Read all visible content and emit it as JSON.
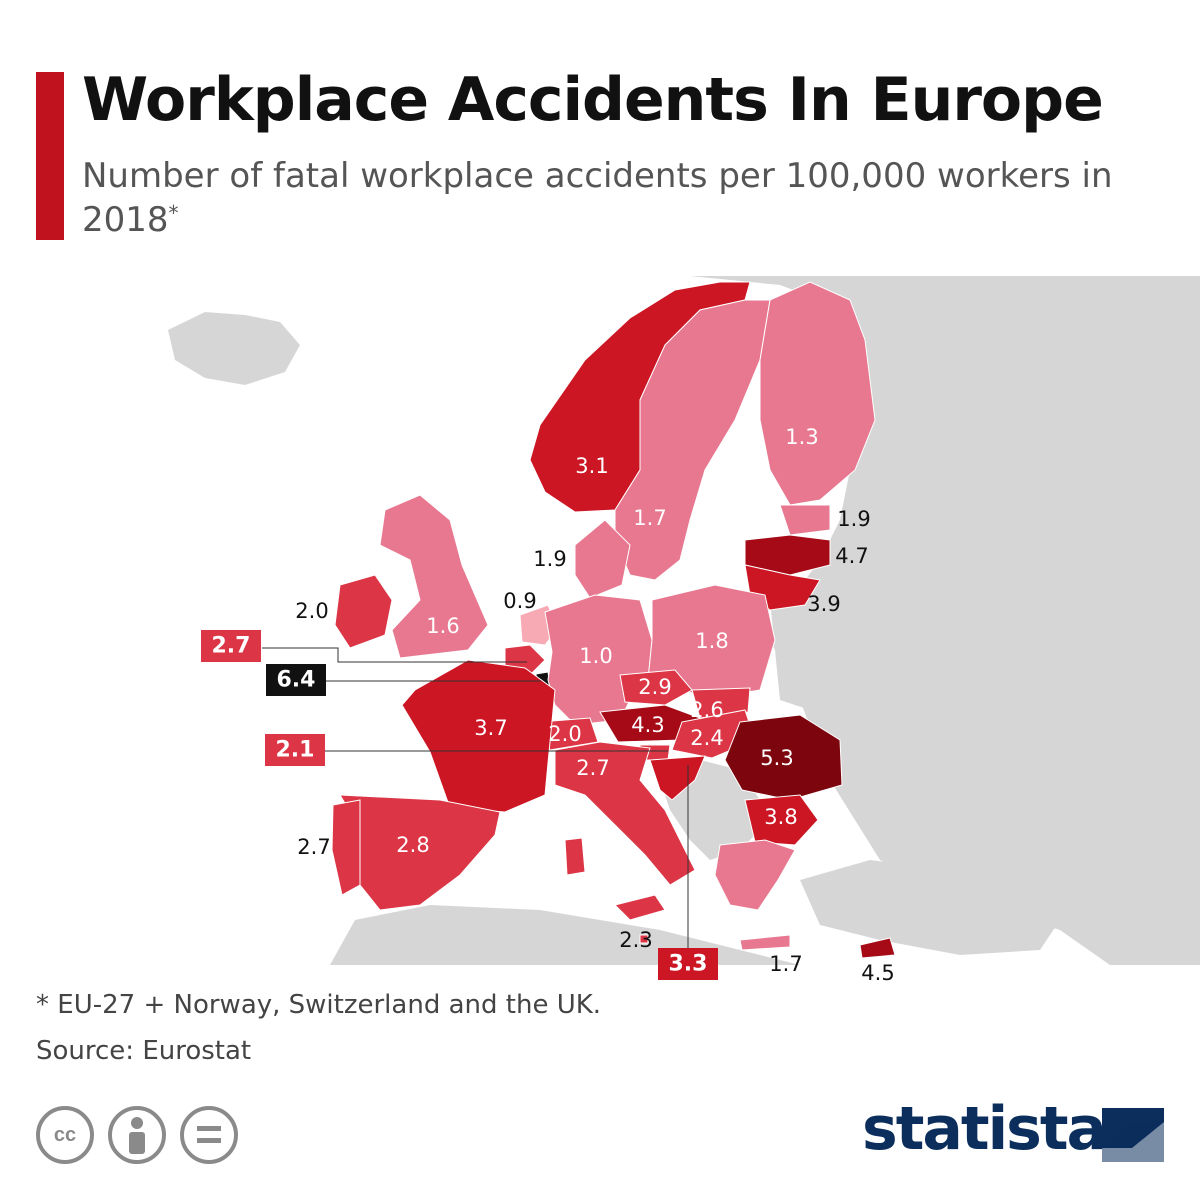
{
  "header": {
    "title": "Workplace Accidents In Europe",
    "subtitle": "Number of fatal workplace accidents per 100,000 workers in 2018",
    "subtitle_marker": "*"
  },
  "footer": {
    "footnote": "* EU-27 + Norway, Switzerland and the UK.",
    "source": "Source: Eurostat",
    "cc_label": "cc",
    "brand": "statista"
  },
  "colors": {
    "accent": "#c0111f",
    "sea": "#ffffff",
    "land_other": "#d6d6d6",
    "tier_0": "#f7aab3",
    "tier_1": "#e87890",
    "tier_2": "#dc3545",
    "tier_3": "#cc1624",
    "tier_4": "#a50a16",
    "tier_5": "#7d050e",
    "tier_top": "#111111",
    "brand": "#0b2e5c",
    "label_light": "#ffffff",
    "label_dark": "#111111"
  },
  "chart_data": {
    "type": "choropleth",
    "metric": "Number of fatal workplace accidents per 100,000 workers in 2018",
    "values": [
      {
        "country": "Norway",
        "value": 3.1
      },
      {
        "country": "Sweden",
        "value": 1.7
      },
      {
        "country": "Finland",
        "value": 1.3
      },
      {
        "country": "Estonia",
        "value": 1.9
      },
      {
        "country": "Latvia",
        "value": 4.7
      },
      {
        "country": "Lithuania",
        "value": 3.9
      },
      {
        "country": "Denmark",
        "value": 1.9
      },
      {
        "country": "Ireland",
        "value": 2.0
      },
      {
        "country": "United Kingdom",
        "value": 1.6
      },
      {
        "country": "Netherlands",
        "value": 0.9
      },
      {
        "country": "Belgium",
        "value": 2.7
      },
      {
        "country": "Luxembourg",
        "value": 6.4
      },
      {
        "country": "Germany",
        "value": 1.0
      },
      {
        "country": "Poland",
        "value": 1.8
      },
      {
        "country": "Czechia",
        "value": 2.9
      },
      {
        "country": "Slovakia",
        "value": 2.6
      },
      {
        "country": "Austria",
        "value": 4.3
      },
      {
        "country": "Hungary",
        "value": 2.4
      },
      {
        "country": "Switzerland",
        "value": 2.0
      },
      {
        "country": "Slovenia",
        "value": 2.1
      },
      {
        "country": "France",
        "value": 3.7
      },
      {
        "country": "Italy",
        "value": 2.7
      },
      {
        "country": "Croatia",
        "value": 3.3
      },
      {
        "country": "Romania",
        "value": 5.3
      },
      {
        "country": "Bulgaria",
        "value": 3.8
      },
      {
        "country": "Spain",
        "value": 2.8
      },
      {
        "country": "Portugal",
        "value": 2.7
      },
      {
        "country": "Malta",
        "value": 2.3
      },
      {
        "country": "Greece",
        "value": 1.7
      },
      {
        "country": "Cyprus",
        "value": 4.5
      }
    ]
  }
}
